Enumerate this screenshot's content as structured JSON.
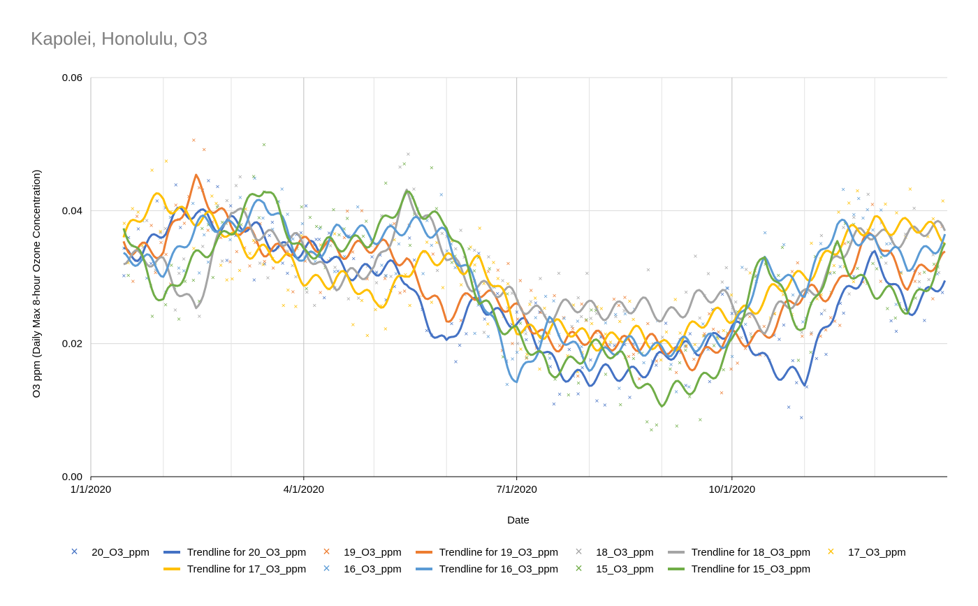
{
  "chart_data": {
    "type": "scatter",
    "title": "Kapolei, Honolulu, O3",
    "xlabel": "Date",
    "ylabel": "O3 ppm (Daily Max 8-hour Ozone Concentration)",
    "x_ticks": [
      "1/1/2020",
      "4/1/2020",
      "7/1/2020",
      "10/1/2020"
    ],
    "y_ticks": [
      "0.00",
      "0.02",
      "0.04",
      "0.06"
    ],
    "ylim": [
      0,
      0.06
    ],
    "xlim": [
      "2020-01-01",
      "2020-12-31"
    ],
    "grid": true,
    "legend_position": "bottom",
    "series": [
      {
        "name": "20_O3_ppm",
        "color": "#4472C4",
        "kind": "points",
        "trend_x": [
          "2020-01-15",
          "2020-02-01",
          "2020-02-15",
          "2020-03-01",
          "2020-03-15",
          "2020-04-01",
          "2020-04-15",
          "2020-05-01",
          "2020-05-15",
          "2020-06-01",
          "2020-06-15",
          "2020-07-01",
          "2020-07-15",
          "2020-08-01",
          "2020-08-15",
          "2020-09-01",
          "2020-09-15",
          "2020-10-01",
          "2020-10-15",
          "2020-11-01",
          "2020-11-15",
          "2020-12-01",
          "2020-12-15",
          "2020-12-31"
        ],
        "trend_y": [
          0.033,
          0.037,
          0.04,
          0.038,
          0.036,
          0.034,
          0.032,
          0.031,
          0.03,
          0.019,
          0.027,
          0.023,
          0.018,
          0.014,
          0.016,
          0.017,
          0.02,
          0.022,
          0.018,
          0.014,
          0.027,
          0.032,
          0.026,
          0.029
        ]
      },
      {
        "name": "19_O3_ppm",
        "color": "#ED7D31",
        "kind": "points",
        "trend_x": [
          "2020-01-15",
          "2020-02-01",
          "2020-02-15",
          "2020-03-01",
          "2020-03-15",
          "2020-04-01",
          "2020-04-15",
          "2020-05-01",
          "2020-05-15",
          "2020-06-01",
          "2020-06-15",
          "2020-07-01",
          "2020-07-15",
          "2020-08-01",
          "2020-08-15",
          "2020-09-01",
          "2020-09-15",
          "2020-10-01",
          "2020-10-15",
          "2020-11-01",
          "2020-11-15",
          "2020-12-01",
          "2020-12-15",
          "2020-12-31"
        ],
        "trend_y": [
          0.036,
          0.033,
          0.045,
          0.037,
          0.035,
          0.034,
          0.035,
          0.034,
          0.033,
          0.023,
          0.029,
          0.024,
          0.021,
          0.02,
          0.021,
          0.019,
          0.018,
          0.02,
          0.022,
          0.027,
          0.029,
          0.036,
          0.03,
          0.032
        ]
      },
      {
        "name": "18_O3_ppm",
        "color": "#A5A5A5",
        "kind": "points",
        "trend_x": [
          "2020-01-15",
          "2020-02-01",
          "2020-02-15",
          "2020-03-01",
          "2020-03-15",
          "2020-04-01",
          "2020-04-15",
          "2020-05-01",
          "2020-05-15",
          "2020-06-01",
          "2020-06-15",
          "2020-07-01",
          "2020-07-15",
          "2020-08-01",
          "2020-08-15",
          "2020-09-01",
          "2020-09-15",
          "2020-10-01",
          "2020-10-15",
          "2020-11-01",
          "2020-11-15",
          "2020-12-01",
          "2020-12-15",
          "2020-12-31"
        ],
        "trend_y": [
          0.034,
          0.031,
          0.026,
          0.04,
          0.037,
          0.034,
          0.03,
          0.03,
          0.043,
          0.033,
          0.029,
          0.026,
          0.025,
          0.025,
          0.026,
          0.024,
          0.027,
          0.026,
          0.023,
          0.027,
          0.033,
          0.037,
          0.036,
          0.037
        ]
      },
      {
        "name": "17_O3_ppm",
        "color": "#FFC000",
        "kind": "points",
        "trend_x": [
          "2020-01-15",
          "2020-02-01",
          "2020-02-15",
          "2020-03-01",
          "2020-03-15",
          "2020-04-01",
          "2020-04-15",
          "2020-05-01",
          "2020-05-15",
          "2020-06-01",
          "2020-06-15",
          "2020-07-01",
          "2020-07-15",
          "2020-08-01",
          "2020-08-15",
          "2020-09-01",
          "2020-09-15",
          "2020-10-01",
          "2020-10-15",
          "2020-11-01",
          "2020-11-15",
          "2020-12-01",
          "2020-12-15",
          "2020-12-31"
        ],
        "trend_y": [
          0.036,
          0.042,
          0.039,
          0.036,
          0.034,
          0.03,
          0.03,
          0.026,
          0.031,
          0.033,
          0.032,
          0.023,
          0.022,
          0.021,
          0.021,
          0.02,
          0.022,
          0.025,
          0.026,
          0.031,
          0.034,
          0.039,
          0.037,
          0.037
        ]
      },
      {
        "name": "16_O3_ppm",
        "color": "#5B9BD5",
        "kind": "points",
        "trend_x": [
          "2020-01-15",
          "2020-02-01",
          "2020-02-15",
          "2020-03-01",
          "2020-03-15",
          "2020-04-01",
          "2020-04-15",
          "2020-05-01",
          "2020-05-15",
          "2020-06-01",
          "2020-06-15",
          "2020-07-01",
          "2020-07-15",
          "2020-08-01",
          "2020-08-15",
          "2020-09-01",
          "2020-09-15",
          "2020-10-01",
          "2020-10-15",
          "2020-11-01",
          "2020-11-15",
          "2020-12-01",
          "2020-12-15",
          "2020-12-31"
        ],
        "trend_y": [
          0.032,
          0.032,
          0.037,
          0.038,
          0.041,
          0.033,
          0.036,
          0.037,
          0.037,
          0.037,
          0.027,
          0.015,
          0.022,
          0.018,
          0.019,
          0.02,
          0.019,
          0.022,
          0.031,
          0.029,
          0.037,
          0.036,
          0.031,
          0.037
        ]
      },
      {
        "name": "15_O3_ppm",
        "color": "#70AD47",
        "kind": "points",
        "trend_x": [
          "2020-01-15",
          "2020-02-01",
          "2020-02-15",
          "2020-03-01",
          "2020-03-15",
          "2020-04-01",
          "2020-04-15",
          "2020-05-01",
          "2020-05-15",
          "2020-06-01",
          "2020-06-15",
          "2020-07-01",
          "2020-07-15",
          "2020-08-01",
          "2020-08-15",
          "2020-09-01",
          "2020-09-15",
          "2020-10-01",
          "2020-10-15",
          "2020-11-01",
          "2020-11-15",
          "2020-12-01",
          "2020-12-15",
          "2020-12-31"
        ],
        "trend_y": [
          0.037,
          0.027,
          0.032,
          0.038,
          0.043,
          0.034,
          0.034,
          0.037,
          0.041,
          0.039,
          0.026,
          0.022,
          0.015,
          0.02,
          0.017,
          0.012,
          0.013,
          0.02,
          0.033,
          0.022,
          0.034,
          0.028,
          0.025,
          0.034
        ]
      }
    ],
    "legend": [
      {
        "label": "20_O3_ppm",
        "type": "marker",
        "color": "#4472C4"
      },
      {
        "label": "Trendline for 20_O3_ppm",
        "type": "line",
        "color": "#4472C4"
      },
      {
        "label": "19_O3_ppm",
        "type": "marker",
        "color": "#ED7D31"
      },
      {
        "label": "Trendline for 19_O3_ppm",
        "type": "line",
        "color": "#ED7D31"
      },
      {
        "label": "18_O3_ppm",
        "type": "marker",
        "color": "#A5A5A5"
      },
      {
        "label": "Trendline for 18_O3_ppm",
        "type": "line",
        "color": "#A5A5A5"
      },
      {
        "label": "17_O3_ppm",
        "type": "marker",
        "color": "#FFC000"
      },
      {
        "label": "Trendline for 17_O3_ppm",
        "type": "line",
        "color": "#FFC000"
      },
      {
        "label": "16_O3_ppm",
        "type": "marker",
        "color": "#5B9BD5"
      },
      {
        "label": "Trendline for 16_O3_ppm",
        "type": "line",
        "color": "#5B9BD5"
      },
      {
        "label": "15_O3_ppm",
        "type": "marker",
        "color": "#70AD47"
      },
      {
        "label": "Trendline for 15_O3_ppm",
        "type": "line",
        "color": "#70AD47"
      }
    ]
  }
}
